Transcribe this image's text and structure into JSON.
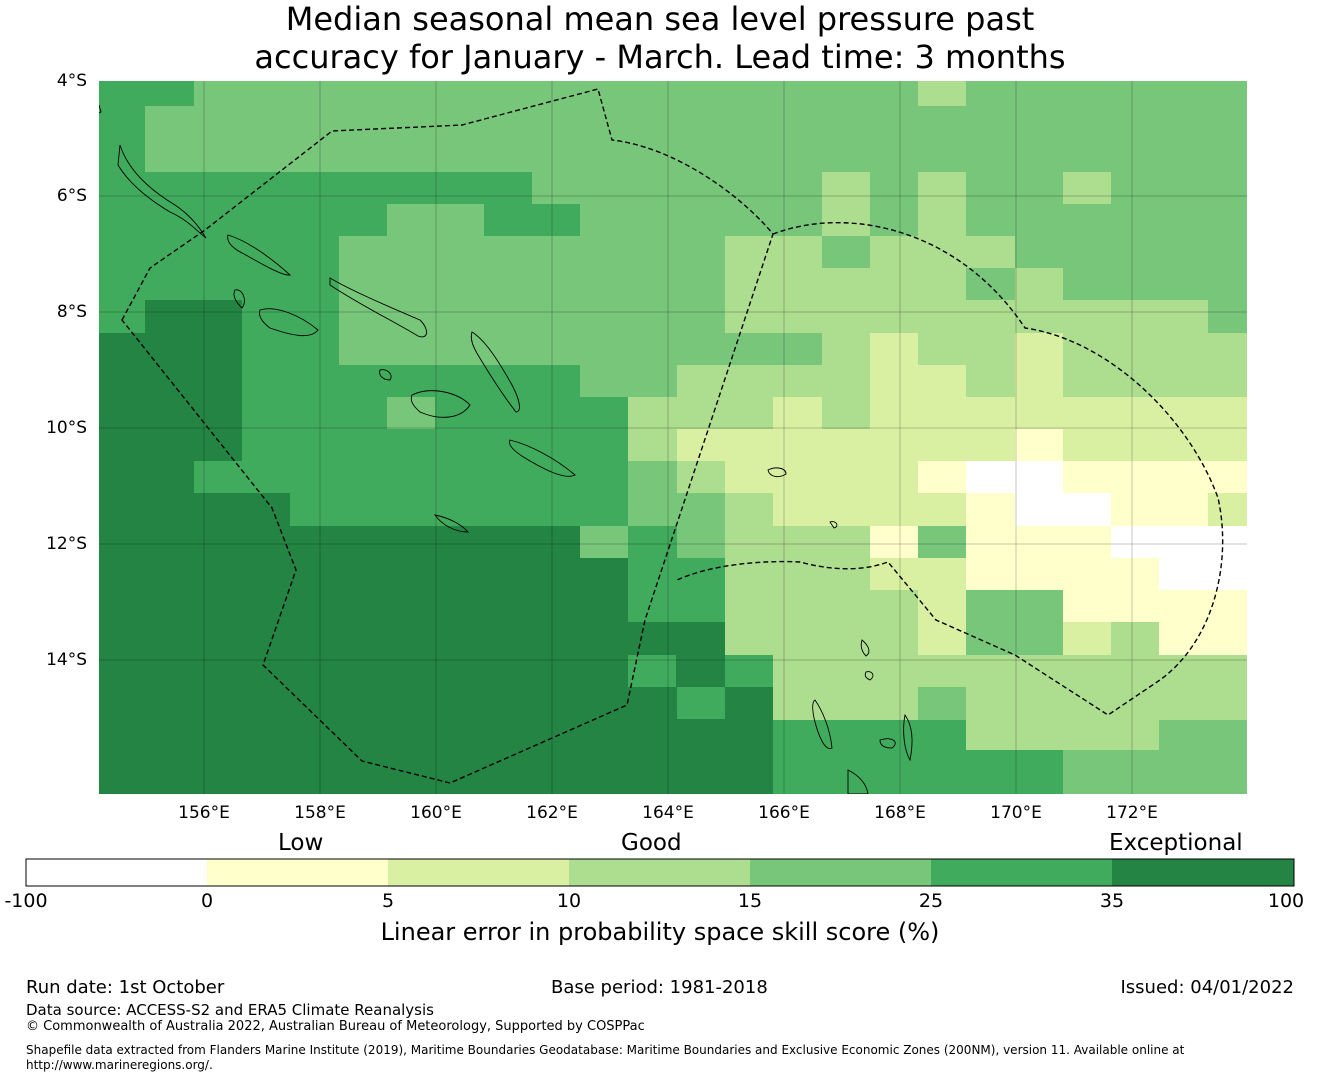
{
  "title": {
    "line1": "Median seasonal mean sea level pressure past",
    "line2": "accuracy for January - March. Lead time: 3 months"
  },
  "map": {
    "lat_labels": [
      "4°S",
      "6°S",
      "8°S",
      "10°S",
      "12°S",
      "14°S"
    ],
    "lon_labels": [
      "156°E",
      "158°E",
      "160°E",
      "162°E",
      "164°E",
      "166°E",
      "168°E",
      "170°E",
      "172°E"
    ]
  },
  "legend": {
    "categories": [
      "Low",
      "Good",
      "Exceptional"
    ],
    "ticks": [
      "-100",
      "0",
      "5",
      "10",
      "15",
      "25",
      "35",
      "100"
    ],
    "colors": [
      "#ffffff",
      "#ffffcc",
      "#d9f0a3",
      "#addd8e",
      "#78c679",
      "#41ab5d",
      "#238443"
    ],
    "title": "Linear error in probability space skill score (%)"
  },
  "footer": {
    "run_date": "Run date: 1st October",
    "base_period": "Base period: 1981-2018",
    "issued": "Issued: 04/01/2022",
    "data_source": "Data source: ACCESS-S2 and ERA5 Climate Reanalysis",
    "copyright": "© Commonwealth of Australia 2022, Australian Bureau of Meteorology, Supported by COSPPac",
    "shapefile": "Shapefile data extracted from Flanders Marine Institute (2019), Maritime Boundaries Geodatabase: Maritime Boundaries and Exclusive Economic Zones (200NM), version 11. Available online at http://www.marineregions.org/."
  }
}
